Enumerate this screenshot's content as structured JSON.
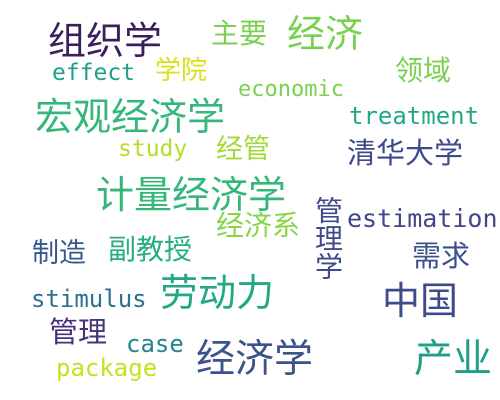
{
  "words": [
    {
      "text": "组织学",
      "color": "#3b1f5c"
    },
    {
      "text": "主要",
      "color": "#7ad151"
    },
    {
      "text": "经济",
      "color": "#7ad151"
    },
    {
      "text": "effect",
      "color": "#1f9e89"
    },
    {
      "text": "学院",
      "color": "#d8e219"
    },
    {
      "text": "领域",
      "color": "#7ad151"
    },
    {
      "text": "economic",
      "color": "#7ad151"
    },
    {
      "text": "宏观经济学",
      "color": "#35b779"
    },
    {
      "text": "treatment",
      "color": "#22a884"
    },
    {
      "text": "study",
      "color": "#b5de2b"
    },
    {
      "text": "经管",
      "color": "#a0da39"
    },
    {
      "text": "清华大学",
      "color": "#3e4a89"
    },
    {
      "text": "计量经济学",
      "color": "#35b779"
    },
    {
      "text": "管理学",
      "color": "#3e4a89"
    },
    {
      "text": "经济系",
      "color": "#86d549"
    },
    {
      "text": "estimation",
      "color": "#404688"
    },
    {
      "text": "制造",
      "color": "#38588c"
    },
    {
      "text": "副教授",
      "color": "#26ad81"
    },
    {
      "text": "需求",
      "color": "#3b528b"
    },
    {
      "text": "stimulus",
      "color": "#2c728e"
    },
    {
      "text": "劳动力",
      "color": "#22a884"
    },
    {
      "text": "中国",
      "color": "#3e4a89"
    },
    {
      "text": "管理",
      "color": "#46327e"
    },
    {
      "text": "case",
      "color": "#26828e"
    },
    {
      "text": "经济学",
      "color": "#3b528b"
    },
    {
      "text": "产业",
      "color": "#1f9e89"
    },
    {
      "text": "package",
      "color": "#c8e020"
    }
  ]
}
